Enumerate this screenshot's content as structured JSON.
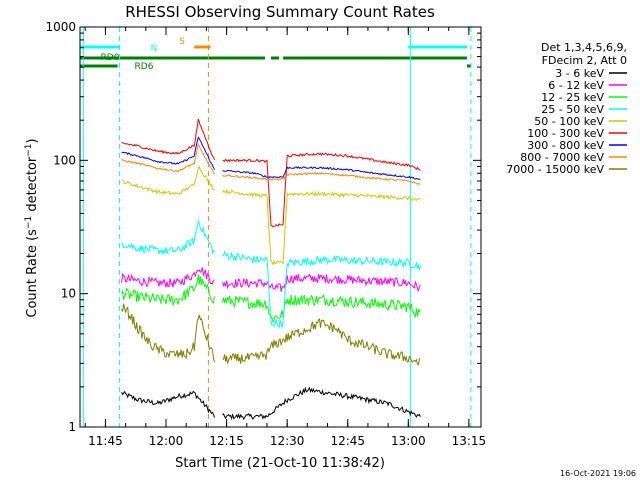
{
  "chart_data": {
    "type": "line",
    "title": "RHESSI Observing Summary Count Rates",
    "xlabel": "Start Time (21-Oct-10 11:38:42)",
    "ylabel": "Count Rate (s⁻¹ detector⁻¹)",
    "y_scale": "log",
    "ylim": [
      1,
      1000
    ],
    "y_ticks": [
      {
        "v": 1,
        "label": "1"
      },
      {
        "v": 10,
        "label": "10"
      },
      {
        "v": 100,
        "label": "100"
      },
      {
        "v": 1000,
        "label": "1000"
      }
    ],
    "xlim": [
      "11:38:42",
      "13:18:00"
    ],
    "x_ticks": [
      "11:45",
      "12:00",
      "12:15",
      "12:30",
      "12:45",
      "13:00",
      "13:15"
    ],
    "grid": false,
    "legend_header": [
      "Det 1,3,4,5,6,9,",
      "FDecim 2, Att 0"
    ],
    "legend_position": "top-right, outside plot",
    "series": [
      {
        "name": "3 - 6 keV",
        "color": "#000000",
        "points": [
          [
            "11:49",
            1.8
          ],
          [
            "11:53",
            1.6
          ],
          [
            "11:58",
            1.5
          ],
          [
            "12:03",
            1.7
          ],
          [
            "12:07",
            1.8
          ],
          [
            "12:12",
            1.2
          ],
          [
            "12:25",
            1.2
          ],
          [
            "12:30",
            1.6
          ],
          [
            "12:35",
            1.9
          ],
          [
            "12:40",
            1.8
          ],
          [
            "12:45",
            1.7
          ],
          [
            "12:50",
            1.6
          ],
          [
            "12:55",
            1.5
          ],
          [
            "13:00",
            1.3
          ],
          [
            "13:03",
            1.2
          ]
        ]
      },
      {
        "name": "6 - 12 keV",
        "color": "#ff00ff",
        "points": [
          [
            "11:49",
            13
          ],
          [
            "11:53",
            12.5
          ],
          [
            "11:58",
            12
          ],
          [
            "12:03",
            12
          ],
          [
            "12:07",
            14
          ],
          [
            "12:08",
            16
          ],
          [
            "12:12",
            12
          ],
          [
            "12:22",
            12
          ],
          [
            "12:25",
            12
          ],
          [
            "12:26",
            11
          ],
          [
            "12:29",
            11
          ],
          [
            "12:30",
            13
          ],
          [
            "12:40",
            13
          ],
          [
            "12:50",
            12.5
          ],
          [
            "13:00",
            12
          ],
          [
            "13:03",
            11
          ]
        ]
      },
      {
        "name": "12 - 25 keV",
        "color": "#00ff00",
        "points": [
          [
            "11:49",
            10
          ],
          [
            "11:53",
            9.5
          ],
          [
            "11:58",
            9
          ],
          [
            "12:03",
            9
          ],
          [
            "12:07",
            11
          ],
          [
            "12:08",
            13
          ],
          [
            "12:12",
            9
          ],
          [
            "12:22",
            8.5
          ],
          [
            "12:25",
            8.5
          ],
          [
            "12:26",
            6.5
          ],
          [
            "12:29",
            7
          ],
          [
            "12:30",
            9
          ],
          [
            "12:40",
            9
          ],
          [
            "12:50",
            8.5
          ],
          [
            "13:00",
            8
          ],
          [
            "13:03",
            7
          ]
        ]
      },
      {
        "name": "25 - 50 keV",
        "color": "#00ffff",
        "points": [
          [
            "11:49",
            24
          ],
          [
            "11:53",
            22
          ],
          [
            "11:58",
            21
          ],
          [
            "12:03",
            21
          ],
          [
            "12:07",
            25
          ],
          [
            "12:08",
            35
          ],
          [
            "12:12",
            20
          ],
          [
            "12:22",
            18
          ],
          [
            "12:25",
            18
          ],
          [
            "12:26",
            6
          ],
          [
            "12:29",
            6
          ],
          [
            "12:30",
            17
          ],
          [
            "12:40",
            18
          ],
          [
            "12:50",
            17.5
          ],
          [
            "13:00",
            17
          ],
          [
            "13:03",
            16
          ]
        ]
      },
      {
        "name": "50 - 100 keV",
        "color": "#cccc00",
        "points": [
          [
            "11:49",
            70
          ],
          [
            "11:53",
            64
          ],
          [
            "11:58",
            58
          ],
          [
            "12:03",
            56
          ],
          [
            "12:07",
            66
          ],
          [
            "12:08",
            90
          ],
          [
            "12:12",
            60
          ],
          [
            "12:22",
            55
          ],
          [
            "12:25",
            54
          ],
          [
            "12:26",
            17
          ],
          [
            "12:29",
            17
          ],
          [
            "12:30",
            56
          ],
          [
            "12:40",
            56
          ],
          [
            "12:50",
            54
          ],
          [
            "13:00",
            52
          ],
          [
            "13:03",
            50
          ]
        ]
      },
      {
        "name": "100 - 300 keV",
        "color": "#ff0000",
        "points": [
          [
            "11:49",
            135
          ],
          [
            "11:53",
            128
          ],
          [
            "11:58",
            117
          ],
          [
            "12:03",
            112
          ],
          [
            "12:07",
            130
          ],
          [
            "12:08",
            200
          ],
          [
            "12:12",
            100
          ],
          [
            "12:22",
            100
          ],
          [
            "12:25",
            98
          ],
          [
            "12:26",
            32
          ],
          [
            "12:29",
            33
          ],
          [
            "12:30",
            108
          ],
          [
            "12:38",
            112
          ],
          [
            "12:45",
            108
          ],
          [
            "12:50",
            102
          ],
          [
            "12:55",
            96
          ],
          [
            "13:00",
            92
          ],
          [
            "13:03",
            85
          ]
        ]
      },
      {
        "name": "300 - 800 keV",
        "color": "#0000ff",
        "points": [
          [
            "11:49",
            115
          ],
          [
            "11:53",
            108
          ],
          [
            "11:58",
            98
          ],
          [
            "12:03",
            94
          ],
          [
            "12:07",
            108
          ],
          [
            "12:08",
            150
          ],
          [
            "12:12",
            85
          ],
          [
            "12:22",
            80
          ],
          [
            "12:25",
            75
          ],
          [
            "12:26",
            75
          ],
          [
            "12:29",
            75
          ],
          [
            "12:30",
            88
          ],
          [
            "12:38",
            88
          ],
          [
            "12:45",
            85
          ],
          [
            "12:50",
            81
          ],
          [
            "12:55",
            78
          ],
          [
            "13:00",
            75
          ],
          [
            "13:03",
            72
          ]
        ]
      },
      {
        "name": "800 - 7000 keV",
        "color": "#ff8800",
        "points": [
          [
            "11:49",
            100
          ],
          [
            "11:53",
            95
          ],
          [
            "11:58",
            87
          ],
          [
            "12:03",
            83
          ],
          [
            "12:07",
            95
          ],
          [
            "12:08",
            130
          ],
          [
            "12:12",
            78
          ],
          [
            "12:22",
            74
          ],
          [
            "12:25",
            72
          ],
          [
            "12:26",
            72
          ],
          [
            "12:29",
            72
          ],
          [
            "12:30",
            78
          ],
          [
            "12:38",
            80
          ],
          [
            "12:45",
            77
          ],
          [
            "12:50",
            74
          ],
          [
            "12:55",
            72
          ],
          [
            "13:00",
            70
          ],
          [
            "13:03",
            66
          ]
        ]
      },
      {
        "name": "7000 - 15000 keV",
        "color": "#808000",
        "points": [
          [
            "11:49",
            8
          ],
          [
            "11:51",
            7
          ],
          [
            "11:53",
            5.5
          ],
          [
            "11:56",
            4.2
          ],
          [
            "11:58",
            3.8
          ],
          [
            "12:01",
            3.5
          ],
          [
            "12:05",
            3.5
          ],
          [
            "12:07",
            4
          ],
          [
            "12:08",
            7
          ],
          [
            "12:12",
            3.2
          ],
          [
            "12:22",
            3.3
          ],
          [
            "12:25",
            3.5
          ],
          [
            "12:26",
            4
          ],
          [
            "12:29",
            4.5
          ],
          [
            "12:32",
            5
          ],
          [
            "12:38",
            6
          ],
          [
            "12:42",
            5.5
          ],
          [
            "12:45",
            4.5
          ],
          [
            "12:50",
            4
          ],
          [
            "12:55",
            3.5
          ],
          [
            "13:00",
            3.3
          ],
          [
            "13:03",
            3
          ]
        ]
      }
    ],
    "annotations": [
      {
        "text": "RD0",
        "color": "#008000"
      },
      {
        "text": "RD6",
        "color": "#008000"
      },
      {
        "text": "N",
        "color": "#00ffff"
      },
      {
        "text": "S",
        "color": "#ff8800"
      }
    ],
    "flag_bars": [
      {
        "label": "N",
        "color": "#00ffff",
        "spans": [
          [
            "11:38:42",
            "11:48:30"
          ],
          [
            "13:00",
            "13:15:30"
          ]
        ],
        "row": "top"
      },
      {
        "label": "S",
        "color": "#ff8800",
        "spans": [
          [
            "12:07",
            "12:11"
          ]
        ],
        "row": "top"
      },
      {
        "label": "RD0",
        "color": "#008000",
        "spans": [
          [
            "11:38:42",
            "12:24:30"
          ],
          [
            "12:26",
            "12:28"
          ],
          [
            "12:29",
            "13:15"
          ]
        ],
        "row": "middle"
      },
      {
        "label": "RD6",
        "color": "#008000",
        "spans": [
          [
            "11:38:42",
            "11:48"
          ],
          [
            "13:15:30",
            "13:15:50"
          ]
        ],
        "row": "lower"
      }
    ],
    "vertical_markers": [
      {
        "time": "11:39:30",
        "color": "#00ffff",
        "style": "solid"
      },
      {
        "time": "11:48:30",
        "color": "#00ffff",
        "style": "dashed"
      },
      {
        "time": "12:10:30",
        "color": "#ff8800",
        "style": "dashed"
      },
      {
        "time": "13:00:30",
        "color": "#00ffff",
        "style": "solid"
      },
      {
        "time": "13:15:30",
        "color": "#00ffff",
        "style": "dashed"
      }
    ]
  },
  "footer_timestamp": "16-Oct-2021 19:06"
}
